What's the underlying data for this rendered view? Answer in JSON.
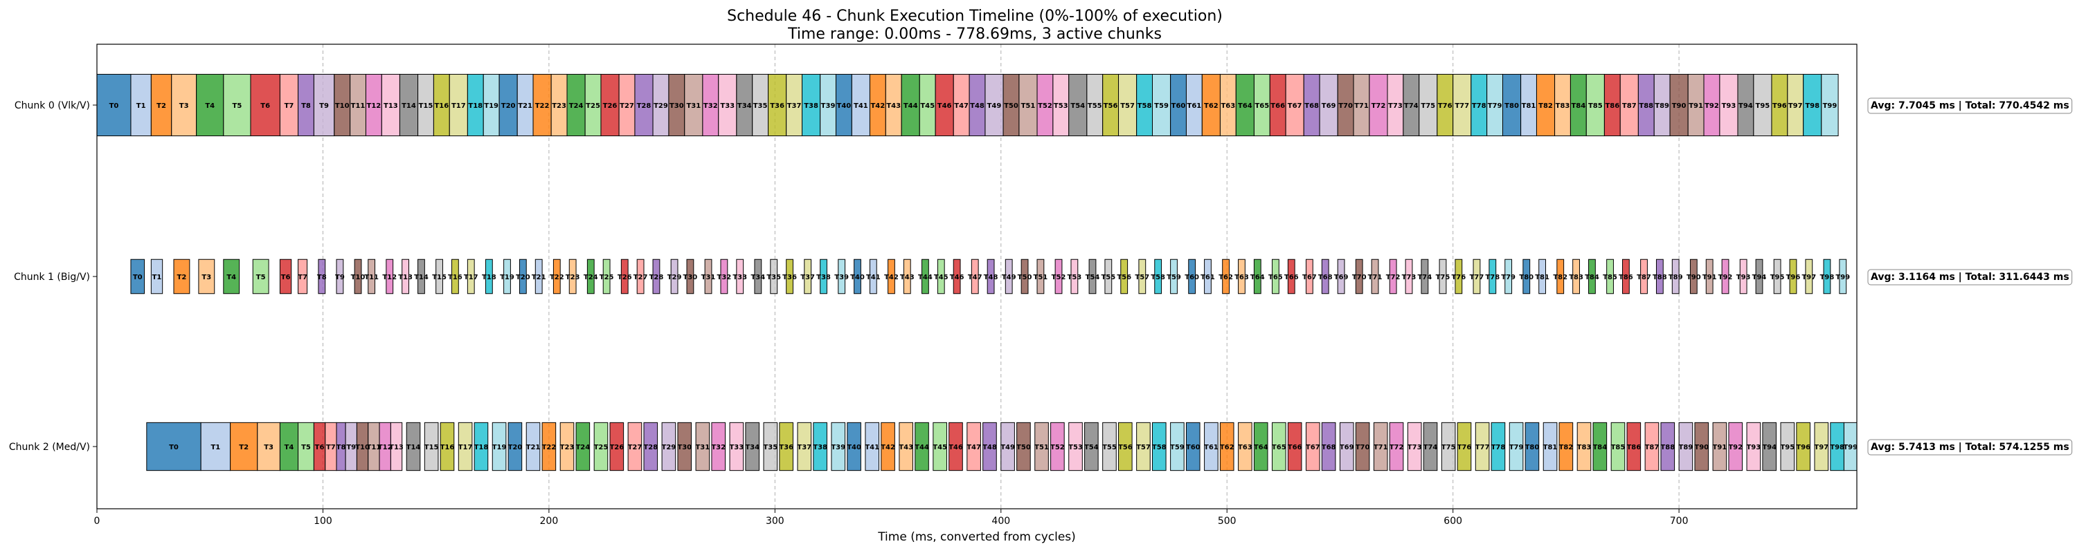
{
  "chart_data": {
    "type": "gantt",
    "title": "Schedule 46 - Chunk Execution Timeline (0%-100% of execution)",
    "subtitle": "Time range: 0.00ms - 778.69ms, 3 active chunks",
    "xlabel": "Time (ms, converted from cycles)",
    "xlim": [
      0,
      778.69
    ],
    "x_ticks": [
      0,
      100,
      200,
      300,
      400,
      500,
      600,
      700
    ],
    "grid": "vertical dashed",
    "palette": [
      "#1f77b4",
      "#aec7e8",
      "#ff7f0e",
      "#ffbb78",
      "#2ca02c",
      "#98df8a",
      "#d62728",
      "#ff9896",
      "#9467bd",
      "#c5b0d5",
      "#8c564b",
      "#c49c94",
      "#e377c2",
      "#f7b6d2",
      "#7f7f7f",
      "#c7c7c7",
      "#bcbd22",
      "#dbdb8d",
      "#17becf",
      "#9edae5"
    ],
    "task_count": 100,
    "task_prefix": "T",
    "chunks": [
      {
        "label": "Chunk 0 (Vlk/V)",
        "summary": "Avg: 7.7045 ms | Total: 770.4542 ms",
        "lane_height": 0.72,
        "task_starts": [
          0,
          15,
          24,
          33,
          44,
          56,
          68,
          81,
          89,
          96,
          105,
          112,
          119,
          126,
          134,
          142,
          149,
          156,
          164,
          171,
          178,
          186,
          193,
          201,
          208,
          216,
          223,
          231,
          238,
          246,
          253,
          260,
          268,
          275,
          283,
          290,
          297,
          305,
          312,
          320,
          327,
          334,
          342,
          349,
          356,
          364,
          371,
          379,
          386,
          393,
          401,
          408,
          416,
          423,
          430,
          438,
          445,
          452,
          460,
          467,
          475,
          482,
          489,
          497,
          504,
          512,
          519,
          526,
          534,
          541,
          549,
          556,
          563,
          571,
          578,
          585,
          593,
          600,
          608,
          615,
          622,
          630,
          637,
          645,
          652,
          659,
          667,
          674,
          682,
          689,
          696,
          704,
          711,
          718,
          726,
          733,
          741,
          748,
          755,
          763
        ],
        "task_end": 770.45
      },
      {
        "label": "Chunk 1 (Big/V)",
        "summary": "Avg: 3.1164 ms | Total: 311.6443 ms",
        "lane_height": 0.4,
        "task_starts": [
          15,
          24,
          34,
          45,
          56,
          69,
          81,
          89,
          98,
          106,
          114,
          120,
          128,
          135,
          142,
          150,
          157,
          164,
          172,
          180,
          187,
          194,
          202,
          209,
          217,
          224,
          232,
          239,
          246,
          254,
          261,
          269,
          276,
          283,
          291,
          298,
          305,
          313,
          320,
          328,
          335,
          342,
          350,
          357,
          365,
          372,
          379,
          387,
          394,
          402,
          409,
          416,
          424,
          431,
          439,
          446,
          453,
          461,
          468,
          475,
          483,
          490,
          498,
          505,
          512,
          520,
          527,
          535,
          542,
          549,
          557,
          564,
          572,
          579,
          586,
          594,
          601,
          609,
          616,
          623,
          631,
          638,
          646,
          653,
          660,
          668,
          675,
          683,
          690,
          697,
          705,
          712,
          719,
          727,
          734,
          742,
          749,
          756,
          764,
          771
        ],
        "task_durations": [
          6,
          5,
          7,
          7,
          7,
          7,
          5,
          4,
          3,
          3,
          3,
          3,
          3,
          3,
          3,
          3,
          3,
          3,
          3,
          3,
          3,
          3,
          3,
          3,
          3,
          3,
          3,
          3,
          3,
          3,
          3,
          3,
          3,
          3,
          3,
          3,
          3,
          3,
          3,
          3,
          3,
          3,
          3,
          3,
          3,
          3,
          3,
          3,
          3,
          3,
          3,
          3,
          3,
          3,
          3,
          3,
          3,
          3,
          3,
          3,
          3,
          3,
          3,
          3,
          3,
          3,
          3,
          3,
          3,
          3,
          3,
          3,
          3,
          3,
          3,
          3,
          3,
          3,
          3,
          3,
          3,
          3,
          3,
          3,
          3,
          3,
          3,
          3,
          3,
          3,
          3,
          3,
          3,
          3,
          3,
          3,
          3,
          3,
          3,
          3
        ]
      },
      {
        "label": "Chunk 2 (Med/V)",
        "summary": "Avg: 5.7413 ms | Total: 574.1255 ms",
        "lane_height": 0.56,
        "task_starts": [
          22,
          46,
          59,
          71,
          81,
          89,
          96,
          101,
          106,
          110,
          115,
          120,
          125,
          130,
          137,
          145,
          152,
          160,
          167,
          175,
          182,
          190,
          197,
          205,
          212,
          220,
          227,
          235,
          242,
          250,
          257,
          265,
          272,
          280,
          287,
          295,
          302,
          310,
          317,
          325,
          332,
          340,
          347,
          355,
          362,
          370,
          377,
          385,
          392,
          400,
          407,
          415,
          422,
          430,
          437,
          445,
          452,
          460,
          467,
          475,
          482,
          490,
          497,
          505,
          512,
          520,
          527,
          535,
          542,
          550,
          557,
          565,
          572,
          580,
          587,
          595,
          602,
          610,
          617,
          625,
          632,
          640,
          647,
          655,
          662,
          670,
          677,
          685,
          692,
          700,
          707,
          715,
          722,
          730,
          737,
          745,
          752,
          760,
          767,
          773
        ],
        "task_end": 778.69,
        "task_durations": [
          24,
          13,
          12,
          10,
          8,
          7,
          5,
          5,
          4,
          5,
          5,
          5,
          5,
          5,
          6,
          6,
          6,
          6,
          6,
          6,
          6,
          6,
          6,
          6,
          6,
          6,
          6,
          6,
          6,
          6,
          6,
          6,
          6,
          6,
          6,
          6,
          6,
          6,
          6,
          6,
          6,
          6,
          6,
          6,
          6,
          6,
          6,
          6,
          6,
          6,
          6,
          6,
          6,
          6,
          6,
          6,
          6,
          6,
          6,
          6,
          6,
          6,
          6,
          6,
          6,
          6,
          6,
          6,
          6,
          6,
          6,
          6,
          6,
          6,
          6,
          6,
          6,
          6,
          6,
          6,
          6,
          6,
          6,
          6,
          6,
          6,
          6,
          6,
          6,
          6,
          6,
          6,
          6,
          6,
          6,
          6,
          6,
          6,
          6,
          5.69
        ]
      }
    ]
  }
}
